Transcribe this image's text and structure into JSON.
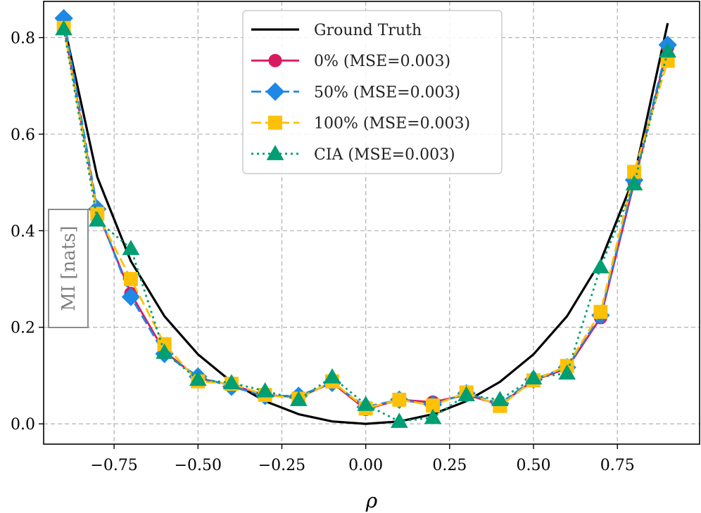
{
  "chart_data": {
    "type": "line",
    "xlabel": "ρ",
    "ylabel": "MI [nats]",
    "xlim": [
      -0.96,
      0.995
    ],
    "ylim": [
      -0.042,
      0.875
    ],
    "xticks": [
      -0.75,
      -0.5,
      -0.25,
      0.0,
      0.25,
      0.5,
      0.75
    ],
    "xtick_labels": [
      "−0.75",
      "−0.50",
      "−0.25",
      "0.00",
      "0.25",
      "0.50",
      "0.75"
    ],
    "yticks": [
      0.0,
      0.2,
      0.4,
      0.6,
      0.8
    ],
    "ytick_labels": [
      "0.0",
      "0.2",
      "0.4",
      "0.6",
      "0.8"
    ],
    "grid": true,
    "legend_position": "top-center",
    "x": [
      -0.9,
      -0.8,
      -0.7,
      -0.6,
      -0.5,
      -0.4,
      -0.3,
      -0.2,
      -0.1,
      0.0,
      0.1,
      0.2,
      0.3,
      0.4,
      0.5,
      0.6,
      0.7,
      0.8,
      0.9
    ],
    "series": [
      {
        "name": "Ground Truth",
        "color": "#000000",
        "line": "solid",
        "marker": "none",
        "values": [
          0.83,
          0.511,
          0.337,
          0.223,
          0.144,
          0.087,
          0.047,
          0.02,
          0.005,
          0.0,
          0.005,
          0.02,
          0.047,
          0.087,
          0.144,
          0.223,
          0.337,
          0.511,
          0.83
        ]
      },
      {
        "name": "0% (MSE=0.003)",
        "color": "#d81b60",
        "line": "solid",
        "marker": "circle",
        "values": [
          0.825,
          0.44,
          0.27,
          0.15,
          0.095,
          0.08,
          0.06,
          0.055,
          0.085,
          0.03,
          0.05,
          0.045,
          0.06,
          0.04,
          0.09,
          0.115,
          0.22,
          0.5,
          0.78
        ]
      },
      {
        "name": "50% (MSE=0.003)",
        "color": "#1e88e5",
        "line": "dashed",
        "marker": "diamond",
        "values": [
          0.84,
          0.445,
          0.263,
          0.145,
          0.098,
          0.077,
          0.058,
          0.058,
          0.085,
          0.035,
          0.05,
          0.04,
          0.063,
          0.042,
          0.092,
          0.117,
          0.225,
          0.505,
          0.785
        ]
      },
      {
        "name": "100% (MSE=0.003)",
        "color": "#ffc107",
        "line": "dashed",
        "marker": "square",
        "values": [
          0.82,
          0.435,
          0.3,
          0.165,
          0.088,
          0.083,
          0.06,
          0.052,
          0.088,
          0.032,
          0.05,
          0.038,
          0.065,
          0.037,
          0.09,
          0.12,
          0.232,
          0.522,
          0.752
        ]
      },
      {
        "name": "CIA (MSE=0.003)",
        "color": "#009e73",
        "line": "dotted",
        "marker": "triangle",
        "values": [
          0.818,
          0.422,
          0.363,
          0.148,
          0.092,
          0.085,
          0.068,
          0.05,
          0.097,
          0.04,
          0.005,
          0.013,
          0.06,
          0.05,
          0.095,
          0.105,
          0.325,
          0.497,
          0.772
        ]
      }
    ]
  }
}
